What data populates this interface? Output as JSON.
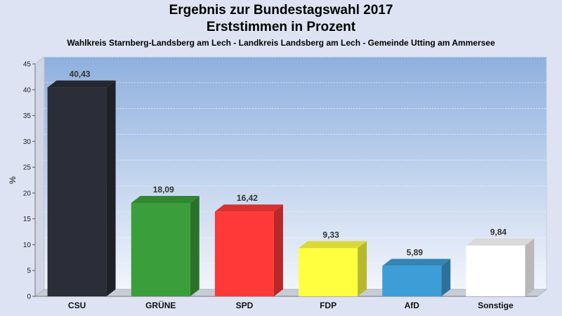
{
  "chart_data": {
    "type": "bar",
    "title": "Ergebnis zur Bundestagswahl 2017",
    "title2": "Erststimmen in Prozent",
    "subtitle": "Wahlkreis Starnberg-Landsberg am Lech - Landkreis Landsberg am Lech - Gemeinde Utting am Ammersee",
    "ylabel": "%",
    "ylim": [
      0,
      45
    ],
    "yticks": [
      0,
      5,
      10,
      15,
      20,
      25,
      30,
      35,
      40,
      45
    ],
    "categories": [
      "CSU",
      "GRÜNE",
      "SPD",
      "FDP",
      "AfD",
      "Sonstige"
    ],
    "values": [
      40.43,
      18.09,
      16.42,
      9.33,
      5.89,
      9.84
    ],
    "value_labels": [
      "40,43",
      "18,09",
      "16,42",
      "9,33",
      "5,89",
      "9,84"
    ],
    "colors": [
      "#2b2e38",
      "#3a9e3a",
      "#ff3838",
      "#ffff40",
      "#3d9dd6",
      "#ffffff"
    ],
    "grid": true,
    "legend": "none"
  }
}
